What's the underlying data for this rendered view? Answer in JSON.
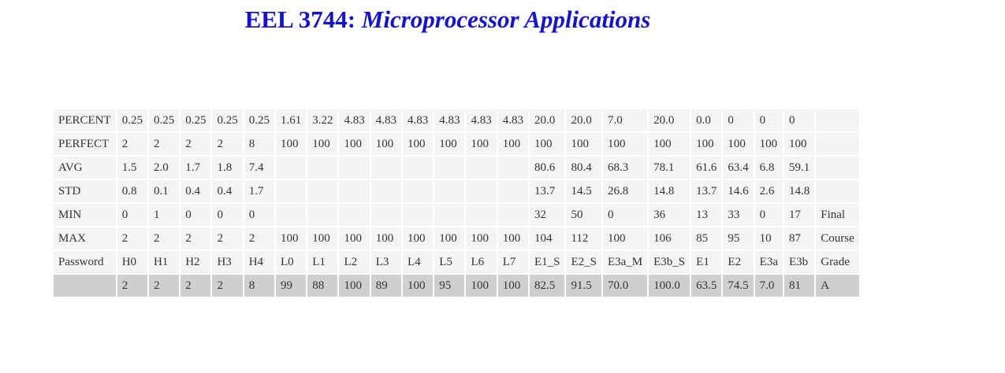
{
  "header": {
    "code": "EEL 3744:",
    "name": "Microprocessor Applications"
  },
  "table": {
    "rows": [
      {
        "label": "PERCENT",
        "cells": [
          "0.25",
          "0.25",
          "0.25",
          "0.25",
          "0.25",
          "1.61",
          "3.22",
          "4.83",
          "4.83",
          "4.83",
          "4.83",
          "4.83",
          "4.83",
          "20.0",
          "20.0",
          "7.0",
          "20.0",
          "0.0",
          "0",
          "0",
          "0",
          ""
        ]
      },
      {
        "label": "PERFECT",
        "cells": [
          "2",
          "2",
          "2",
          "2",
          "8",
          "100",
          "100",
          "100",
          "100",
          "100",
          "100",
          "100",
          "100",
          "100",
          "100",
          "100",
          "100",
          "100",
          "100",
          "100",
          "100",
          ""
        ]
      },
      {
        "label": "AVG",
        "cells": [
          "1.5",
          "2.0",
          "1.7",
          "1.8",
          "7.4",
          "",
          "",
          "",
          "",
          "",
          "",
          "",
          "",
          "80.6",
          "80.4",
          "68.3",
          "78.1",
          "61.6",
          "63.4",
          "6.8",
          "59.1",
          ""
        ]
      },
      {
        "label": "STD",
        "cells": [
          "0.8",
          "0.1",
          "0.4",
          "0.4",
          "1.7",
          "",
          "",
          "",
          "",
          "",
          "",
          "",
          "",
          "13.7",
          "14.5",
          "26.8",
          "14.8",
          "13.7",
          "14.6",
          "2.6",
          "14.8",
          ""
        ]
      },
      {
        "label": "MIN",
        "cells": [
          "0",
          "1",
          "0",
          "0",
          "0",
          "",
          "",
          "",
          "",
          "",
          "",
          "",
          "",
          "32",
          "50",
          "0",
          "36",
          "13",
          "33",
          "0",
          "17",
          "Final"
        ]
      },
      {
        "label": "MAX",
        "cells": [
          "2",
          "2",
          "2",
          "2",
          "2",
          "100",
          "100",
          "100",
          "100",
          "100",
          "100",
          "100",
          "100",
          "104",
          "112",
          "100",
          "106",
          "85",
          "95",
          "10",
          "87",
          "Course"
        ]
      },
      {
        "label": "Password",
        "cells": [
          "H0",
          "H1",
          "H2",
          "H3",
          "H4",
          "L0",
          "L1",
          "L2",
          "L3",
          "L4",
          "L5",
          "L6",
          "L7",
          "E1_S",
          "E2_S",
          "E3a_M",
          "E3b_S",
          "E1",
          "E2",
          "E3a",
          "E3b",
          "Grade"
        ]
      }
    ],
    "student": {
      "label": "",
      "cells": [
        "2",
        "2",
        "2",
        "2",
        "8",
        "99",
        "88",
        "100",
        "89",
        "100",
        "95",
        "100",
        "100",
        "82.5",
        "91.5",
        "70.0",
        "100.0",
        "63.5",
        "74.5",
        "7.0",
        "81",
        "A"
      ]
    }
  }
}
